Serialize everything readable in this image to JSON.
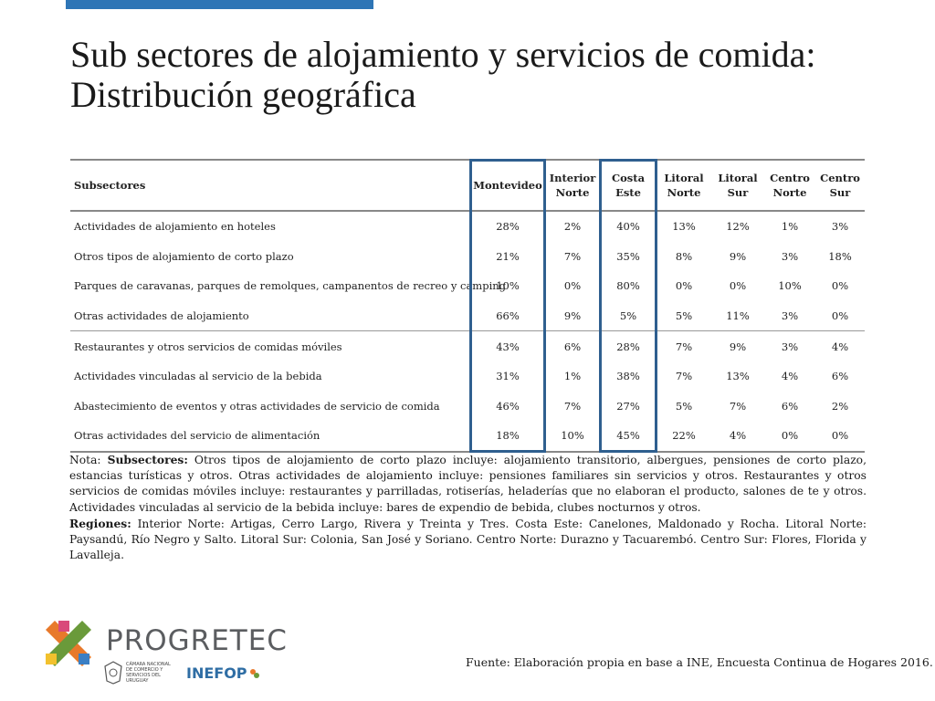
{
  "title": "Sub sectores de alojamiento y servicios de comida: Distribución geográfica",
  "table": {
    "headers": [
      "Subsectores",
      "Montevideo",
      "Interior Norte",
      "Costa Este",
      "Litoral Norte",
      "Litoral Sur",
      "Centro Norte",
      "Centro Sur"
    ],
    "rows": [
      {
        "label": "Actividades de alojamiento en hoteles",
        "values": [
          "28%",
          "2%",
          "40%",
          "13%",
          "12%",
          "1%",
          "3%"
        ]
      },
      {
        "label": "Otros tipos de alojamiento de corto plazo",
        "values": [
          "21%",
          "7%",
          "35%",
          "8%",
          "9%",
          "3%",
          "18%"
        ]
      },
      {
        "label": "Parques de caravanas, parques de remolques, campanentos de recreo y camping",
        "values": [
          "10%",
          "0%",
          "80%",
          "0%",
          "0%",
          "10%",
          "0%"
        ]
      },
      {
        "label": "Otras actividades de alojamiento",
        "values": [
          "66%",
          "9%",
          "5%",
          "5%",
          "11%",
          "3%",
          "0%"
        ]
      },
      {
        "label": "Restaurantes y otros servicios de comidas móviles",
        "values": [
          "43%",
          "6%",
          "28%",
          "7%",
          "9%",
          "3%",
          "4%"
        ]
      },
      {
        "label": "Actividades vinculadas al servicio de la bebida",
        "values": [
          "31%",
          "1%",
          "38%",
          "7%",
          "13%",
          "4%",
          "6%"
        ]
      },
      {
        "label": "Abastecimiento de eventos y otras actividades de servicio de comida",
        "values": [
          "46%",
          "7%",
          "27%",
          "5%",
          "7%",
          "6%",
          "2%"
        ]
      },
      {
        "label": "Otras actividades del servicio   de alimentación",
        "values": [
          "18%",
          "10%",
          "45%",
          "22%",
          "4%",
          "0%",
          "0%"
        ]
      }
    ],
    "highlighted_columns": [
      "Montevideo",
      "Costa Este"
    ]
  },
  "note": {
    "subsectores_label": "Subsectores:",
    "prefix": "Nota: ",
    "subsectores_text": " Otros tipos de alojamiento de corto plazo incluye: alojamiento transitorio, albergues, pensiones de corto plazo, estancias turísticas y otros. Otras actividades de alojamiento incluye: pensiones familiares sin servicios y otros. Restaurantes y otros servicios de comidas móviles incluye: restaurantes y parrilladas, rotiserías, heladerías que no elaboran el producto, salones de te y otros. Actividades vinculadas al servicio de la bebida incluye: bares de expendio de bebida, clubes nocturnos y otros.",
    "regiones_label": "Regiones:",
    "regiones_text": " Interior Norte: Artigas, Cerro Largo, Rivera y Treinta y Tres. Costa Este: Canelones, Maldonado y Rocha. Litoral Norte: Paysandú, Río Negro y Salto. Litoral Sur: Colonia, San José y Soriano. Centro Norte: Durazno y Tacuarembó. Centro Sur: Flores, Florida y Lavalleja."
  },
  "source": "Fuente: Elaboración propia en base a INE, Encuesta Continua de Hogares 2016.",
  "logos": {
    "progretec": "PROGRETEC",
    "camara": "CÁMARA NACIONAL DE COMERCIO Y SERVICIOS DEL URUGUAY",
    "inefop": "INEFOP"
  },
  "colors": {
    "accent_bar": "#2e75b6",
    "highlight_border": "#2f5f8f"
  }
}
